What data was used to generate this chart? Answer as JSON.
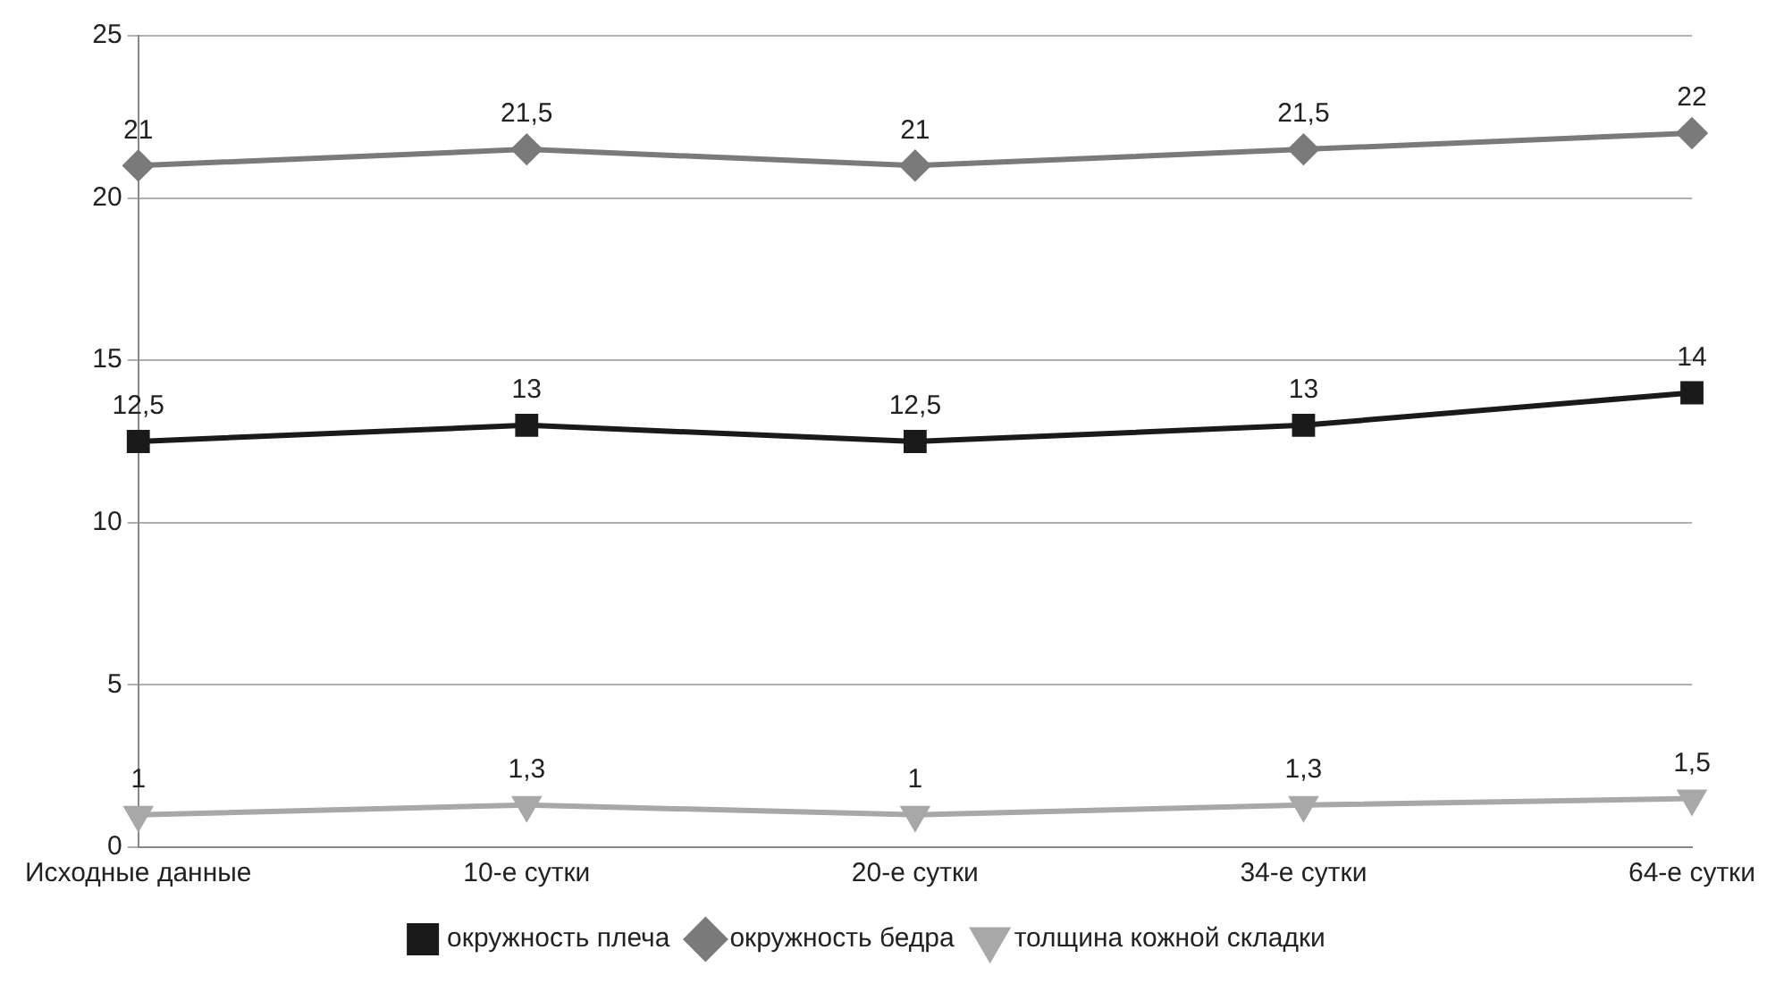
{
  "chart_data": {
    "type": "line",
    "categories": [
      "Исходные данные",
      "10-е сутки",
      "20-е сутки",
      "34-е сутки",
      "64-е сутки"
    ],
    "series": [
      {
        "name": "окружность плеча",
        "color": "#1a1a1a",
        "marker": "square",
        "values": [
          12.5,
          13,
          12.5,
          13,
          14
        ],
        "value_labels": [
          "12,5",
          "13",
          "12,5",
          "13",
          "14"
        ]
      },
      {
        "name": "окружность бедра",
        "color": "#7a7a7a",
        "marker": "diamond",
        "values": [
          21,
          21.5,
          21,
          21.5,
          22
        ],
        "value_labels": [
          "21",
          "21,5",
          "21",
          "21,5",
          "22"
        ]
      },
      {
        "name": "толщина кожной складки",
        "color": "#a8a8a8",
        "marker": "triangle-down",
        "values": [
          1,
          1.3,
          1,
          1.3,
          1.5
        ],
        "value_labels": [
          "1",
          "1,3",
          "1",
          "1,3",
          "1,5"
        ]
      }
    ],
    "ylim": [
      0,
      25
    ],
    "yticks": [
      0,
      5,
      10,
      15,
      20,
      25
    ],
    "grid": "y",
    "legend": "bottom",
    "line_style": "solid"
  }
}
